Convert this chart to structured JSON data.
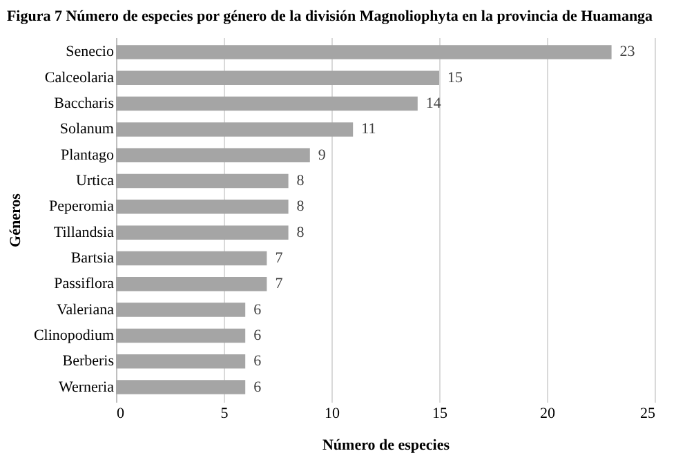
{
  "chart_data": {
    "type": "bar",
    "orientation": "horizontal",
    "title": "Figura 7 Número de especies por género de la división Magnoliophyta en la provincia de Huamanga",
    "xlabel": "Número de especies",
    "ylabel": "Géneros",
    "categories": [
      "Senecio",
      "Calceolaria",
      "Baccharis",
      "Solanum",
      "Plantago",
      "Urtica",
      "Peperomia",
      "Tillandsia",
      "Bartsia",
      "Passiflora",
      "Valeriana",
      "Clinopodium",
      "Berberis",
      "Werneria"
    ],
    "values": [
      23,
      15,
      14,
      11,
      9,
      8,
      8,
      8,
      7,
      7,
      6,
      6,
      6,
      6
    ],
    "color": "#a5a5a5",
    "xlim": [
      0,
      25
    ],
    "xticks": [
      0,
      5,
      10,
      15,
      20,
      25
    ],
    "grid": "x",
    "data_labels": true
  }
}
